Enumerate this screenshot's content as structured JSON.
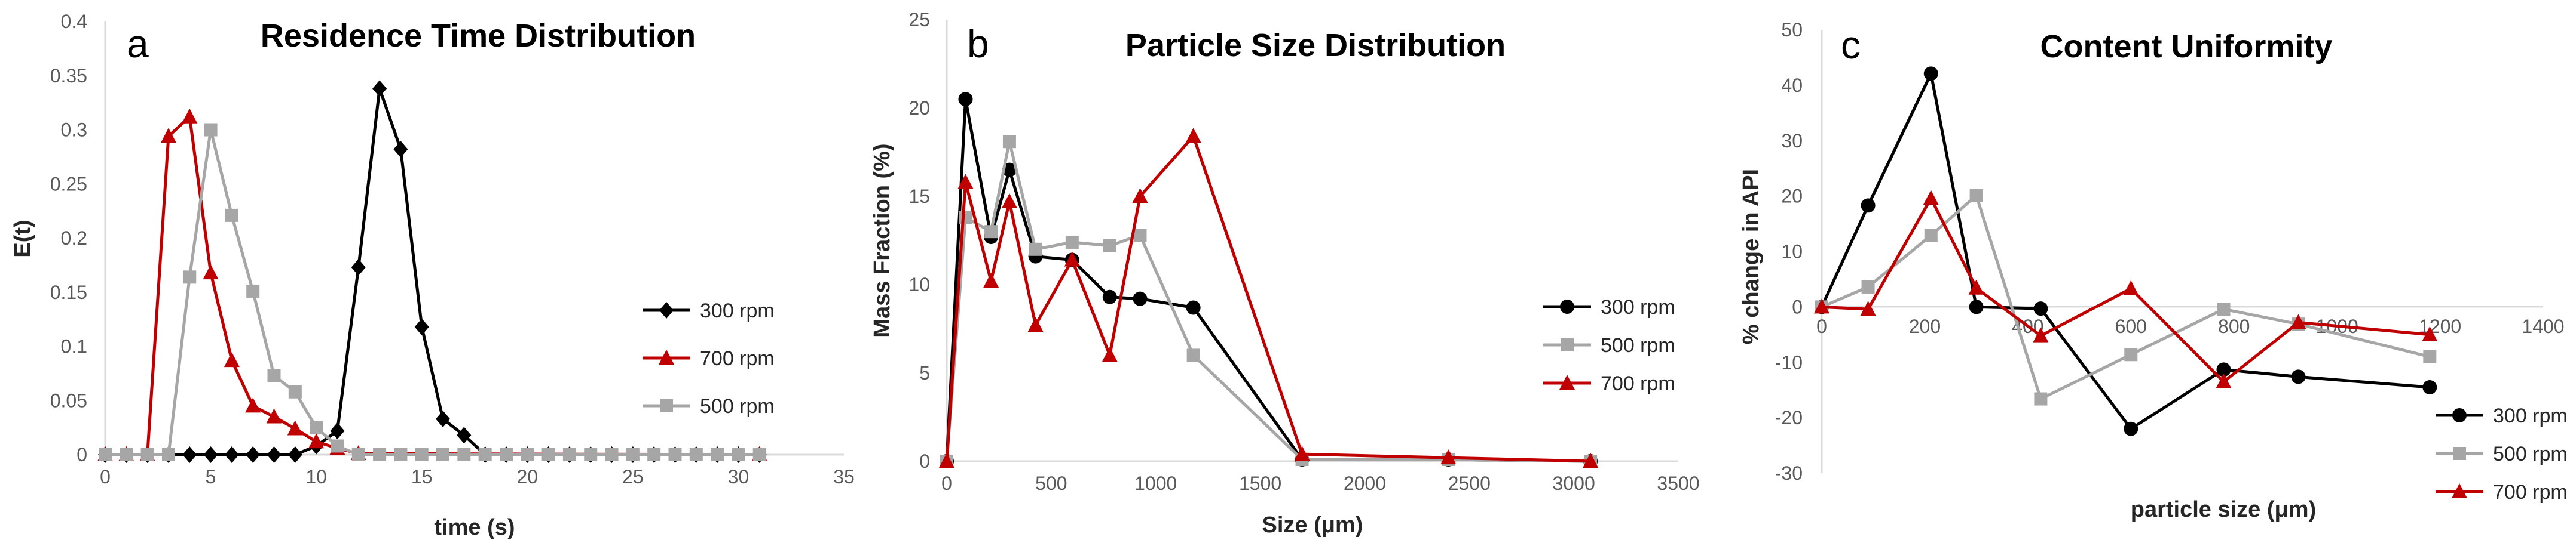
{
  "chart_data": [
    {
      "type": "line",
      "panel_label": "a",
      "title": "Residence Time Distribution",
      "xlabel": "time (s)",
      "ylabel": "E(t)",
      "xlim": [
        0,
        35
      ],
      "ylim": [
        0,
        0.4
      ],
      "xticks": [
        0,
        5,
        10,
        15,
        20,
        25,
        30,
        35
      ],
      "xtick_labels": [
        "0",
        "5",
        "10",
        "15",
        "20",
        "25",
        "30",
        "35"
      ],
      "yticks": [
        0,
        0.05,
        0.1,
        0.15,
        0.2,
        0.25,
        0.3,
        0.35,
        0.4
      ],
      "ytick_labels": [
        "0",
        "0.05",
        "0.1",
        "0.15",
        "0.2",
        "0.25",
        "0.3",
        "0.35",
        "0.4"
      ],
      "grid": false,
      "legend_position": "right",
      "series": [
        {
          "name": "300 rpm",
          "color": "#000000",
          "marker": "diamond",
          "x": [
            0,
            1,
            2,
            3,
            4,
            5,
            6,
            7,
            8,
            9,
            10,
            11,
            12,
            13,
            14,
            15,
            16,
            17,
            18,
            19,
            20,
            21,
            22,
            23,
            24,
            25,
            26,
            27,
            28,
            29,
            30,
            31
          ],
          "y": [
            0,
            0,
            0,
            0,
            0,
            0,
            0,
            0,
            0,
            0,
            0.008,
            0.022,
            0.173,
            0.338,
            0.282,
            0.118,
            0.033,
            0.018,
            0,
            0,
            0,
            0,
            0,
            0,
            0,
            0,
            0,
            0,
            0,
            0,
            0,
            0
          ]
        },
        {
          "name": "700 rpm",
          "color": "#c00000",
          "marker": "triangle",
          "x": [
            0,
            1,
            2,
            3,
            4,
            5,
            6,
            7,
            8,
            9,
            10,
            11,
            12,
            31
          ],
          "y": [
            0,
            0,
            0,
            0.294,
            0.312,
            0.168,
            0.087,
            0.045,
            0.035,
            0.024,
            0.012,
            0.006,
            0.001,
            0
          ]
        },
        {
          "name": "500 rpm",
          "color": "#a6a6a6",
          "marker": "square",
          "x": [
            0,
            1,
            2,
            3,
            4,
            5,
            6,
            7,
            8,
            9,
            10,
            11,
            12,
            13,
            14,
            15,
            16,
            17,
            18,
            19,
            20,
            21,
            22,
            23,
            24,
            25,
            26,
            27,
            28,
            29,
            30,
            31
          ],
          "y": [
            0,
            0,
            0,
            0,
            0.164,
            0.3,
            0.221,
            0.151,
            0.073,
            0.058,
            0.025,
            0.008,
            0,
            0,
            0,
            0,
            0,
            0,
            0,
            0,
            0,
            0,
            0,
            0,
            0,
            0,
            0,
            0,
            0,
            0,
            0,
            0
          ]
        }
      ]
    },
    {
      "type": "line",
      "panel_label": "b",
      "title": "Particle Size Distribution",
      "xlabel": "Size (μm)",
      "ylabel": "Mass Fraction (%)",
      "xlim": [
        0,
        3500
      ],
      "ylim": [
        0,
        25
      ],
      "xticks": [
        0,
        500,
        1000,
        1500,
        2000,
        2500,
        3000,
        3500
      ],
      "xtick_labels": [
        "0",
        "500",
        "1000",
        "1500",
        "2000",
        "2500",
        "3000",
        "3500"
      ],
      "yticks": [
        0,
        5,
        10,
        15,
        20,
        25
      ],
      "ytick_labels": [
        "0",
        "5",
        "10",
        "15",
        "20",
        "25"
      ],
      "grid": false,
      "legend_position": "right",
      "series": [
        {
          "name": "300 rpm",
          "color": "#000000",
          "marker": "circle",
          "x": [
            0,
            90,
            212,
            300,
            425,
            600,
            780,
            925,
            1180,
            1700,
            2400,
            3080
          ],
          "y": [
            0,
            20.5,
            12.7,
            16.5,
            11.6,
            11.4,
            9.3,
            9.2,
            8.7,
            0.1,
            0.1,
            0
          ]
        },
        {
          "name": "500 rpm",
          "color": "#a6a6a6",
          "marker": "square",
          "x": [
            0,
            90,
            212,
            300,
            425,
            600,
            780,
            925,
            1180,
            1700,
            2400,
            3080
          ],
          "y": [
            0,
            13.8,
            13.0,
            18.1,
            12.0,
            12.4,
            12.2,
            12.8,
            6.0,
            0.1,
            0.1,
            0
          ]
        },
        {
          "name": "700 rpm",
          "color": "#c00000",
          "marker": "triangle",
          "x": [
            0,
            90,
            212,
            300,
            425,
            600,
            780,
            925,
            1180,
            1700,
            2400,
            3080
          ],
          "y": [
            0,
            15.8,
            10.2,
            14.7,
            7.7,
            11.4,
            6.0,
            15.0,
            18.4,
            0.4,
            0.2,
            0
          ]
        }
      ]
    },
    {
      "type": "line",
      "panel_label": "c",
      "title": "Content Uniformity",
      "xlabel": "particle size (μm)",
      "ylabel": "% change in API",
      "xlim": [
        0,
        1400
      ],
      "ylim": [
        -30,
        50
      ],
      "xticks": [
        0,
        200,
        400,
        600,
        800,
        1000,
        1200,
        1400
      ],
      "xtick_labels": [
        "0",
        "200",
        "400",
        "600",
        "800",
        "1000",
        "1200",
        "1400"
      ],
      "yticks": [
        -30,
        -20,
        -10,
        0,
        10,
        20,
        30,
        40,
        50
      ],
      "ytick_labels": [
        "-30",
        "-20",
        "-10",
        "0",
        "10",
        "20",
        "30",
        "40",
        "50"
      ],
      "grid": false,
      "legend_position": "bottom-right",
      "series": [
        {
          "name": "300 rpm",
          "color": "#000000",
          "marker": "circle",
          "x": [
            0,
            90,
            212,
            300,
            425,
            600,
            780,
            925,
            1180
          ],
          "y": [
            0,
            18.3,
            42.1,
            0,
            -0.3,
            -22.0,
            -11.3,
            -12.6,
            -14.5
          ]
        },
        {
          "name": "500 rpm",
          "color": "#a6a6a6",
          "marker": "square",
          "x": [
            0,
            90,
            212,
            300,
            425,
            600,
            780,
            925,
            1180
          ],
          "y": [
            0,
            3.6,
            12.9,
            20.1,
            -16.6,
            -8.6,
            -0.4,
            -3.1,
            -9.0
          ]
        },
        {
          "name": "700 rpm",
          "color": "#c00000",
          "marker": "triangle",
          "x": [
            0,
            90,
            212,
            300,
            425,
            600,
            780,
            925,
            1180
          ],
          "y": [
            0,
            -0.4,
            19.6,
            3.4,
            -5.2,
            3.3,
            -13.5,
            -2.8,
            -5.0
          ]
        }
      ]
    }
  ]
}
